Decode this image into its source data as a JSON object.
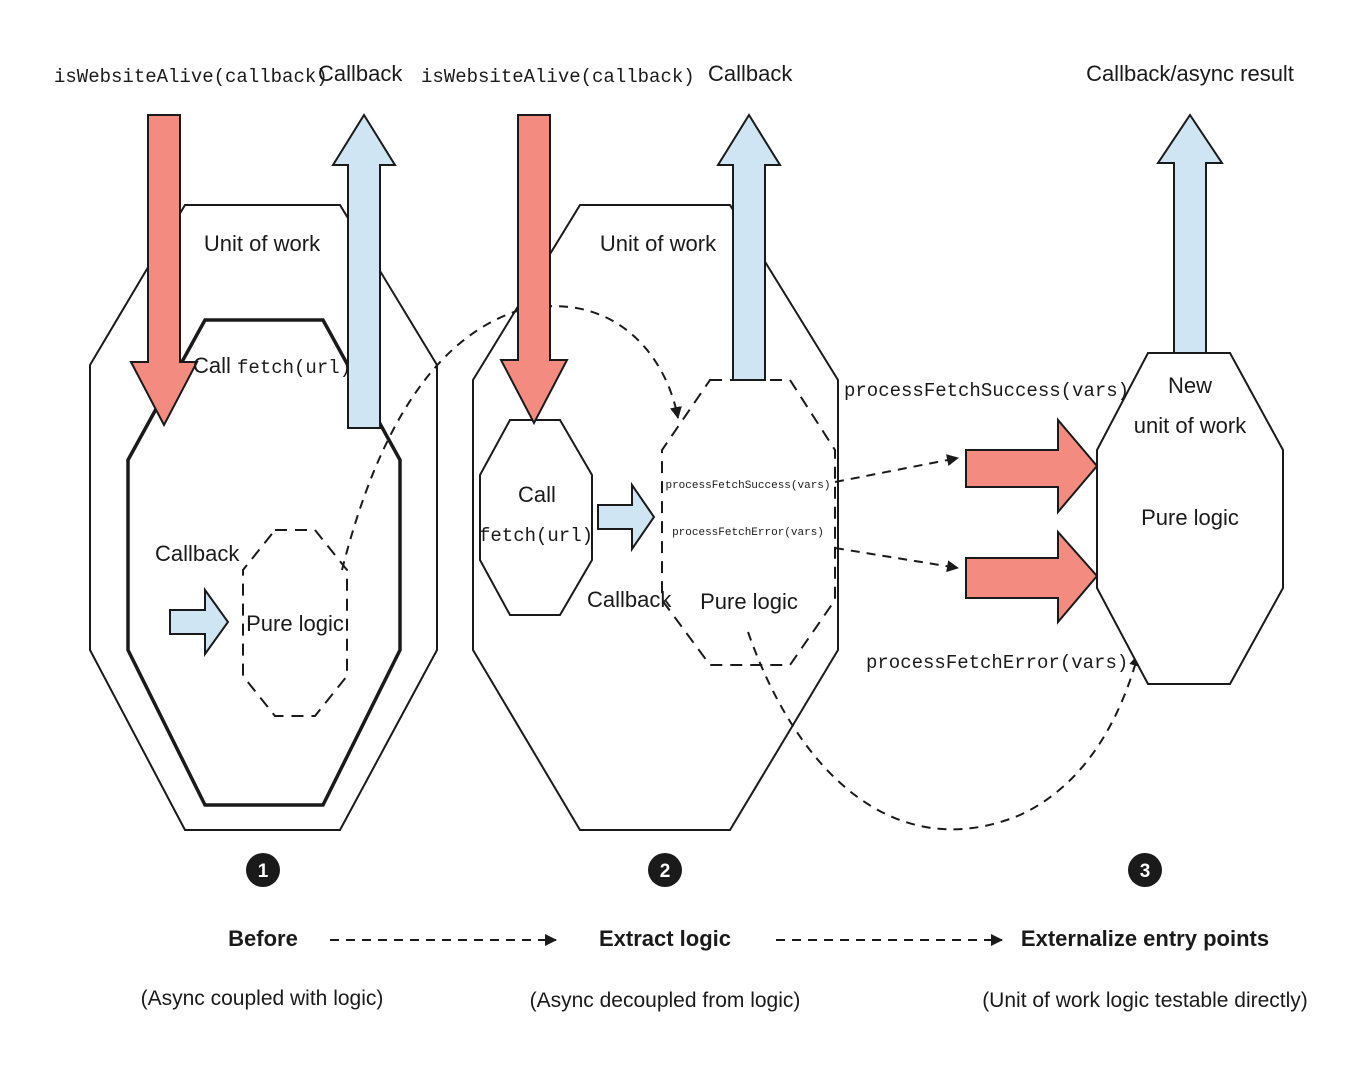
{
  "panel1": {
    "entry_label": "isWebsiteAlive(callback)",
    "callback_label": "Callback",
    "unit_label": "Unit of work",
    "call_prefix": "Call ",
    "call_code": "fetch(url)",
    "inner_callback_label": "Callback",
    "pure_logic_label": "Pure logic"
  },
  "panel2": {
    "entry_label": "isWebsiteAlive(callback)",
    "callback_label": "Callback",
    "unit_label": "Unit of work",
    "call_label": "Call",
    "call_code": "fetch(url)",
    "inner_callback_label": "Callback",
    "success_code": "processFetchSuccess(vars)",
    "error_code": "processFetchError(vars)",
    "pure_logic_label": "Pure logic"
  },
  "panel3": {
    "result_label": "Callback/async result",
    "success_code": "processFetchSuccess(vars)",
    "error_code": "processFetchError(vars)",
    "new_unit_line1": "New",
    "new_unit_line2": "unit of work",
    "pure_logic_label": "Pure logic"
  },
  "steps": [
    {
      "number": "1",
      "title": "Before",
      "subtitle": "(Async coupled with logic)"
    },
    {
      "number": "2",
      "title": "Extract logic",
      "subtitle": "(Async decoupled from logic)"
    },
    {
      "number": "3",
      "title": "Externalize entry points",
      "subtitle": "(Unit of work logic testable directly)"
    }
  ],
  "colors": {
    "input_arrow": "#f38b80",
    "output_arrow": "#cfe5f4",
    "outline": "#1a1a1a"
  }
}
